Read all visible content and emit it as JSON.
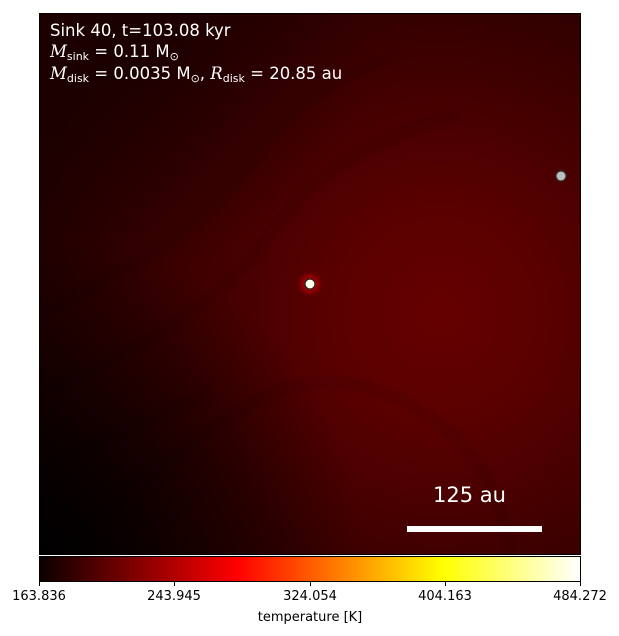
{
  "annotation": {
    "line1": "Sink 40, t=103.08 kyr",
    "m_sink_symbol": "M",
    "m_sink_sub": "sink",
    "m_sink_value": " = 0.11 M",
    "m_sink_unit_sub": "⊙",
    "m_disk_symbol": "M",
    "m_disk_sub": "disk",
    "m_disk_value": " = 0.0035 M",
    "m_disk_unit_sub": "⊙",
    "sep": ", ",
    "r_disk_symbol": "R",
    "r_disk_sub": "disk",
    "r_disk_value": " = 20.85 au"
  },
  "scalebar": {
    "label": "125 au"
  },
  "colorbar": {
    "label": "temperature [K]",
    "ticks": [
      "163.836",
      "243.945",
      "324.054",
      "404.163",
      "484.272"
    ],
    "colormap": "hot"
  },
  "colors": {
    "background_dark": "#000000",
    "field_peak": "#650000",
    "scalebar": "#ffffff",
    "text": "#ffffff"
  },
  "markers": [
    {
      "name": "central-sink",
      "fill": "#ffffe8",
      "halo": "#c00000"
    },
    {
      "name": "secondary-sink",
      "fill": "#bdbdbd",
      "halo": "none"
    }
  ]
}
